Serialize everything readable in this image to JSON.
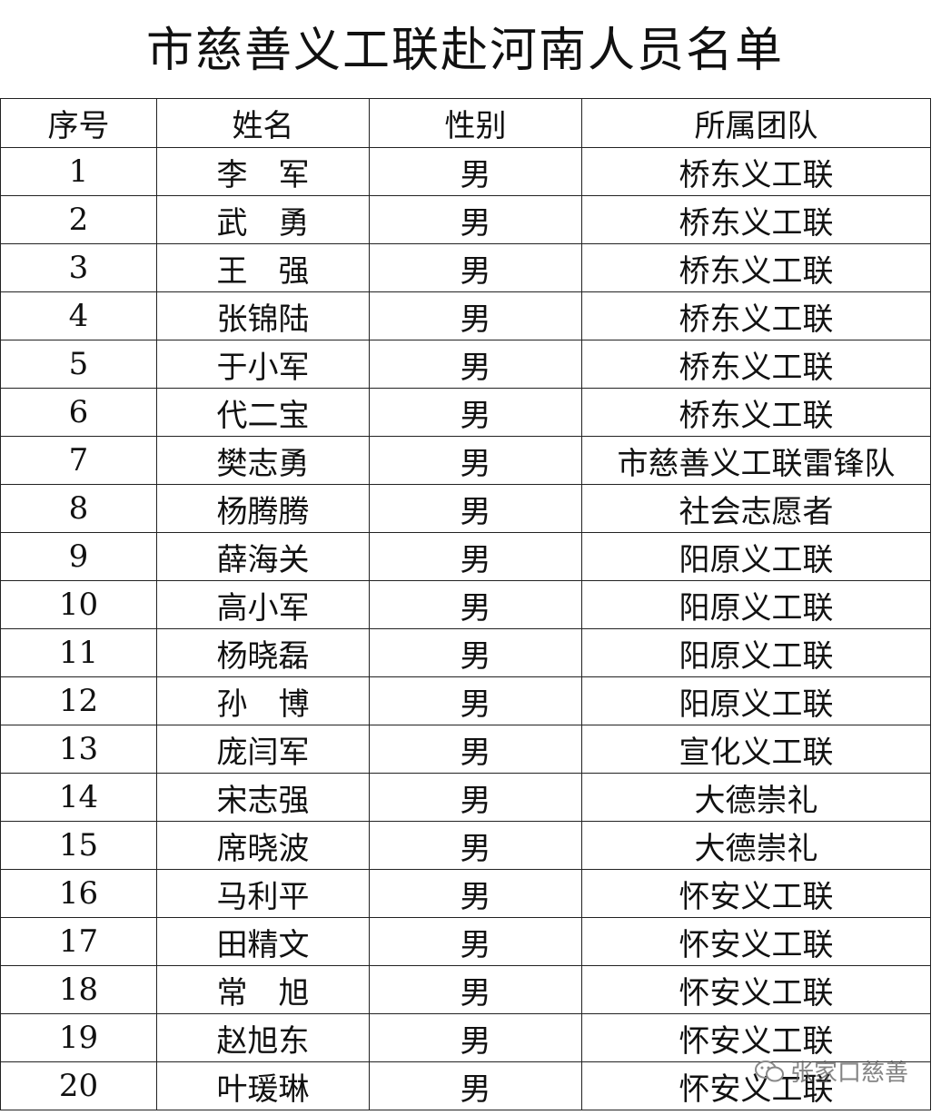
{
  "header": {
    "title": "市慈善义工联赴河南人员名单"
  },
  "table": {
    "columns": [
      "序号",
      "姓名",
      "性别",
      "所属团队"
    ],
    "rows": [
      [
        1,
        "李　军",
        "男",
        "桥东义工联"
      ],
      [
        2,
        "武　勇",
        "男",
        "桥东义工联"
      ],
      [
        3,
        "王　强",
        "男",
        "桥东义工联"
      ],
      [
        4,
        "张锦陆",
        "男",
        "桥东义工联"
      ],
      [
        5,
        "于小军",
        "男",
        "桥东义工联"
      ],
      [
        6,
        "代二宝",
        "男",
        "桥东义工联"
      ],
      [
        7,
        "樊志勇",
        "男",
        "市慈善义工联雷锋队"
      ],
      [
        8,
        "杨腾腾",
        "男",
        "社会志愿者"
      ],
      [
        9,
        "薛海关",
        "男",
        "阳原义工联"
      ],
      [
        10,
        "高小军",
        "男",
        "阳原义工联"
      ],
      [
        11,
        "杨晓磊",
        "男",
        "阳原义工联"
      ],
      [
        12,
        "孙　博",
        "男",
        "阳原义工联"
      ],
      [
        13,
        "庞闫军",
        "男",
        "宣化义工联"
      ],
      [
        14,
        "宋志强",
        "男",
        "大德崇礼"
      ],
      [
        15,
        "席晓波",
        "男",
        "大德崇礼"
      ],
      [
        16,
        "马利平",
        "男",
        "怀安义工联"
      ],
      [
        17,
        "田精文",
        "男",
        "怀安义工联"
      ],
      [
        18,
        "常　旭",
        "男",
        "怀安义工联"
      ],
      [
        19,
        "赵旭东",
        "男",
        "怀安义工联"
      ],
      [
        20,
        "叶瑗琳",
        "男",
        "怀安义工联"
      ]
    ]
  },
  "watermark": "张家口慈善"
}
